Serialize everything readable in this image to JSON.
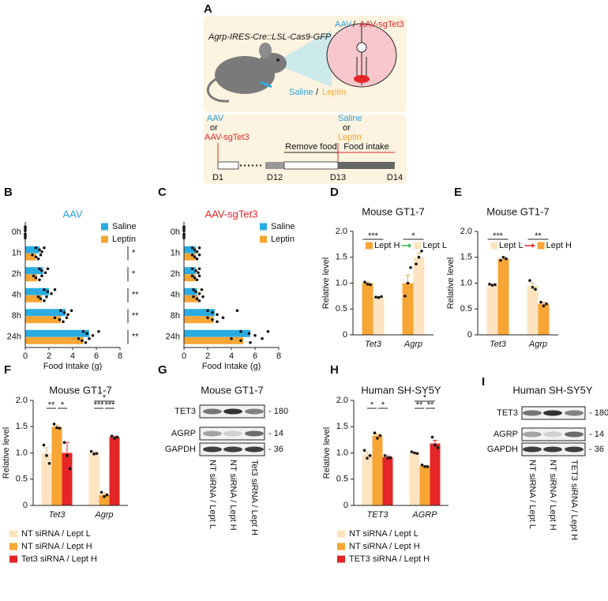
{
  "diagram": {
    "panel": "A",
    "genotype": "Agrp-IRES-Cre::LSL-Cas9-GFP",
    "virus": [
      "AAV",
      "/",
      "AAV-sgTet3"
    ],
    "injection": [
      "Saline",
      "/",
      "Leptin"
    ],
    "timeline": {
      "virus": [
        "AAV",
        "or",
        "AAV-sgTet3"
      ],
      "treatment": [
        "Saline",
        "or",
        "Leptin"
      ],
      "phases": [
        "Remove food",
        "Food intake"
      ],
      "days": [
        "D1",
        "D12",
        "D13",
        "D14"
      ]
    }
  },
  "chart_data": [
    {
      "panel": "B",
      "type": "bar",
      "orientation": "horizontal",
      "title": "AAV",
      "title_color": "#2b9fd9",
      "categories": [
        "0h",
        "1h",
        "2h",
        "4h",
        "8h",
        "24h"
      ],
      "series": [
        {
          "name": "Saline",
          "color": "#2aace2",
          "values": [
            0,
            1.2,
            1.5,
            2.0,
            3.4,
            5.4
          ],
          "points": [
            [
              0,
              0,
              0,
              0
            ],
            [
              0.9,
              1.2,
              1.4,
              1.6
            ],
            [
              1.2,
              1.4,
              1.7,
              1.9
            ],
            [
              1.6,
              1.9,
              2.2,
              2.5
            ],
            [
              3.0,
              3.3,
              3.6,
              3.9
            ],
            [
              4.9,
              5.2,
              5.7,
              6.2
            ]
          ]
        },
        {
          "name": "Leptin",
          "color": "#f7a535",
          "values": [
            0,
            0.9,
            1.0,
            1.4,
            3.0,
            4.9
          ],
          "points": [
            [
              0,
              0,
              0,
              0
            ],
            [
              0.6,
              0.9,
              1.1,
              1.3
            ],
            [
              0.7,
              0.9,
              1.2,
              1.4
            ],
            [
              1.1,
              1.3,
              1.6,
              1.8
            ],
            [
              2.5,
              2.9,
              3.2,
              3.5
            ],
            [
              4.5,
              4.8,
              5.1,
              5.4
            ]
          ]
        }
      ],
      "xlabel": "Food Intake (g)",
      "xlim": [
        0,
        8
      ],
      "xticks": [
        0,
        2,
        4,
        6,
        8
      ],
      "legend": "top-right",
      "significance": [
        null,
        "*",
        "*",
        "**",
        "**",
        "**"
      ]
    },
    {
      "panel": "C",
      "type": "bar",
      "orientation": "horizontal",
      "title": "AAV-sgTet3",
      "title_color": "#e42627",
      "categories": [
        "0h",
        "1h",
        "2h",
        "4h",
        "8h",
        "24h"
      ],
      "series": [
        {
          "name": "Saline",
          "color": "#2aace2",
          "values": [
            0,
            1.0,
            1.0,
            1.1,
            2.6,
            5.6
          ],
          "points": [
            [
              0,
              0,
              0,
              0
            ],
            [
              0.7,
              0.9,
              1.1,
              1.3
            ],
            [
              0.7,
              1.0,
              1.2,
              1.3
            ],
            [
              0.8,
              1.0,
              1.3,
              1.5
            ],
            [
              2.0,
              2.4,
              2.8,
              4.5
            ],
            [
              4.8,
              5.5,
              6.0,
              7.1
            ]
          ]
        },
        {
          "name": "Leptin",
          "color": "#f7a535",
          "values": [
            0,
            1.0,
            1.0,
            1.2,
            2.5,
            5.0
          ],
          "points": [
            [
              0,
              0,
              0,
              0
            ],
            [
              0.7,
              0.9,
              1.1,
              1.3
            ],
            [
              0.7,
              0.9,
              1.1,
              1.3
            ],
            [
              0.8,
              1.1,
              1.3,
              1.6
            ],
            [
              2.0,
              2.4,
              2.8,
              3.3
            ],
            [
              4.0,
              4.8,
              5.6,
              6.6
            ]
          ]
        }
      ],
      "xlabel": "Food Intake (g)",
      "xlim": [
        0,
        8
      ],
      "xticks": [
        0,
        2,
        4,
        6,
        8
      ],
      "legend": "top-right"
    },
    {
      "panel": "D",
      "type": "bar",
      "title": "Mouse GT1-7",
      "ylabel": "Relative level",
      "categories": [
        "Tet3",
        "Agrp"
      ],
      "category_style": "italic",
      "ylim": [
        0,
        2
      ],
      "yticks": [
        0,
        0.5,
        {
          "value": 1,
          "label": "1.0"
        },
        1.5,
        {
          "value": 2,
          "label": "2.0"
        }
      ],
      "legend": "top",
      "legend_arrow_color": "#3cb54a",
      "series": [
        {
          "name": "Lept H",
          "color": "#f7a535",
          "values": [
            1.0,
            1.0
          ],
          "errors": [
            0.02,
            0.15
          ],
          "points": [
            [
              1.02,
              0.98,
              0.97
            ],
            [
              0.75,
              1.0,
              1.3
            ]
          ]
        },
        {
          "name": "Lept L",
          "color": "#fde3c0",
          "values": [
            0.73,
            1.5
          ],
          "errors": [
            0.01,
            0.08
          ],
          "points": [
            [
              0.73,
              0.72,
              0.74
            ],
            [
              1.37,
              1.5,
              1.62
            ]
          ]
        }
      ],
      "significance": [
        [
          "***"
        ],
        [
          "*"
        ]
      ]
    },
    {
      "panel": "E",
      "type": "bar",
      "title": "Mouse GT1-7",
      "ylabel": "Relative level",
      "categories": [
        "Tet3",
        "Agrp"
      ],
      "category_style": "italic",
      "ylim": [
        0,
        2
      ],
      "yticks": [
        0,
        0.5,
        {
          "value": 1,
          "label": "1.0"
        },
        1.5,
        {
          "value": 2,
          "label": "2.0"
        }
      ],
      "legend": "top",
      "legend_arrow_color": "#e42627",
      "series": [
        {
          "name": "Lept L",
          "color": "#fde3c0",
          "values": [
            0.97,
            0.95
          ],
          "errors": [
            0.01,
            0.05
          ],
          "points": [
            [
              0.98,
              0.96,
              0.97
            ],
            [
              1.05,
              0.92,
              0.88
            ]
          ]
        },
        {
          "name": "Lept H",
          "color": "#f7a535",
          "values": [
            1.47,
            0.6
          ],
          "errors": [
            0.02,
            0.03
          ],
          "points": [
            [
              1.44,
              1.5,
              1.47
            ],
            [
              0.63,
              0.56,
              0.6
            ]
          ]
        }
      ],
      "significance": [
        [
          "***"
        ],
        [
          "**"
        ]
      ]
    },
    {
      "panel": "F",
      "type": "bar",
      "title": "Mouse GT1-7",
      "ylabel": "Relative level",
      "categories": [
        "Tet3",
        "Agrp"
      ],
      "category_style": "italic",
      "ylim": [
        0,
        2
      ],
      "yticks": [
        0,
        0.5,
        {
          "value": 1,
          "label": "1.0"
        },
        1.5,
        {
          "value": 2,
          "label": "2.0"
        }
      ],
      "legend": "bottom",
      "series": [
        {
          "name": "NT siRNA / Lept L",
          "color": "#fde3c0",
          "values": [
            1.0,
            1.0
          ],
          "errors": [
            0.1,
            0.02
          ],
          "points": [
            [
              1.15,
              0.95,
              0.8
            ],
            [
              1.03,
              0.98,
              0.99
            ]
          ]
        },
        {
          "name": "NT siRNA / Lept H",
          "color": "#f7a535",
          "values": [
            1.5,
            0.2
          ],
          "errors": [
            0.03,
            0.03
          ],
          "points": [
            [
              1.55,
              1.48,
              1.47
            ],
            [
              0.25,
              0.17,
              0.2
            ]
          ]
        },
        {
          "name": "Tet3 siRNA / Lept H",
          "color": "#e42627",
          "values": [
            1.0,
            1.3
          ],
          "errors": [
            0.2,
            0.02
          ],
          "points": [
            [
              1.2,
              0.95,
              0.7
            ],
            [
              1.32,
              1.28,
              1.3
            ]
          ]
        }
      ],
      "significance": [
        [
          "**",
          "*"
        ],
        [
          "***",
          "***",
          "*"
        ]
      ]
    },
    {
      "panel": "H",
      "type": "bar",
      "title": "Human SH-SY5Y",
      "ylabel": "Relative level",
      "categories": [
        "TET3",
        "AGRP"
      ],
      "category_style": "italic",
      "ylim": [
        0,
        2
      ],
      "yticks": [
        0,
        0.5,
        {
          "value": 1,
          "label": "1.0"
        },
        1.5,
        {
          "value": 2,
          "label": "2.0"
        }
      ],
      "legend": "bottom",
      "series": [
        {
          "name": "NT siRNA / Lept L",
          "color": "#fde3c0",
          "values": [
            0.97,
            1.0
          ],
          "errors": [
            0.05,
            0.01
          ],
          "points": [
            [
              1.05,
              0.9,
              0.95
            ],
            [
              1.02,
              1.0,
              0.99
            ]
          ]
        },
        {
          "name": "NT siRNA / Lept H",
          "color": "#f7a535",
          "values": [
            1.33,
            0.75
          ],
          "errors": [
            0.03,
            0.01
          ],
          "points": [
            [
              1.38,
              1.28,
              1.33
            ],
            [
              0.77,
              0.74,
              0.74
            ]
          ]
        },
        {
          "name": "TET3 siRNA / Lept H",
          "color": "#e42627",
          "values": [
            0.92,
            1.18
          ],
          "errors": [
            0.02,
            0.06
          ],
          "points": [
            [
              0.95,
              0.9,
              0.91
            ],
            [
              1.3,
              1.15,
              1.1
            ]
          ]
        }
      ],
      "significance": [
        [
          "*",
          "*"
        ],
        [
          "**",
          "**",
          "*"
        ]
      ]
    }
  ],
  "blots": [
    {
      "panel": "G",
      "title": "Mouse GT1-7",
      "rows": [
        {
          "label": "TET3",
          "size": "- 180"
        },
        {
          "label": "AGRP",
          "size": "- 14"
        },
        {
          "label": "GAPDH",
          "size": "- 36"
        }
      ],
      "lanes": [
        "NT siRNA / Lept L",
        "NT siRNA / Lept H",
        "Tet3 siRNA / Lept H"
      ]
    },
    {
      "panel": "I",
      "title": "Human SH-SY5Y",
      "rows": [
        {
          "label": "TET3",
          "size": "- 180"
        },
        {
          "label": "AGRP",
          "size": "- 14"
        },
        {
          "label": "GAPDH",
          "size": "- 36"
        }
      ],
      "lanes": [
        "NT siRNA / Lept L",
        "NT siRNA / Lept H",
        "TET3 siRNA / Lept H"
      ]
    }
  ]
}
